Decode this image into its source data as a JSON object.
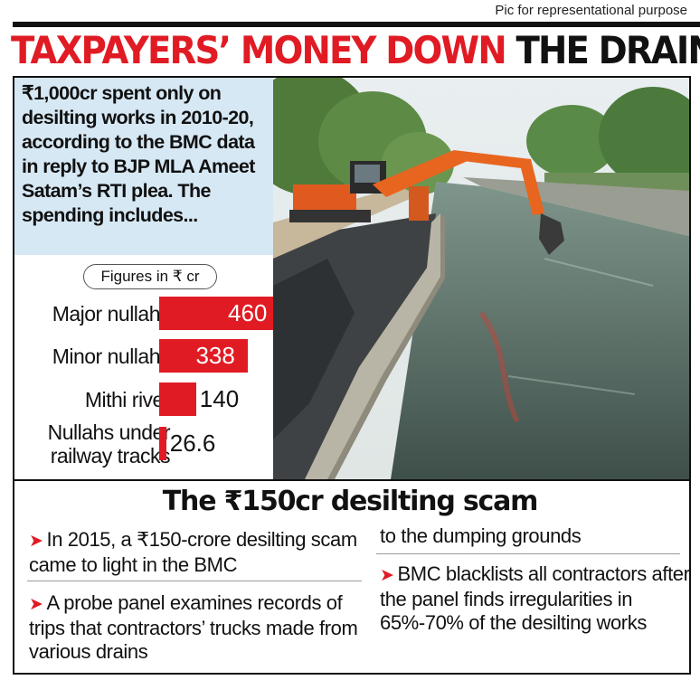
{
  "credit": "Pic for representational purpose",
  "headline": {
    "red_part": "TAXPAYERS’ MONEY DOWN",
    "black_part": "THE DRAIN?"
  },
  "intro_text": "₹1,000cr spent only on desilting works in 2010-20, according to the BMC data in reply to BJP MLA Ameet Satam’s RTI plea. The spending includes...",
  "figures_label": "Figures in ₹ cr",
  "photo_icon": "excavator-desilting-photo",
  "colors": {
    "accent": "#e01b24",
    "intro_bg": "#d6e8f4"
  },
  "chart_data": {
    "type": "bar",
    "orientation": "horizontal",
    "unit": "₹ cr",
    "categories": [
      "Major nullahs",
      "Minor nullahs",
      "Mithi river",
      "Nullahs under railway tracks"
    ],
    "category_lines": [
      [
        "Major nullahs"
      ],
      [
        "Minor nullahs"
      ],
      [
        "Mithi river"
      ],
      [
        "Nullahs under",
        "railway tracks"
      ]
    ],
    "values": [
      460,
      338,
      140,
      26.6
    ],
    "value_labels": [
      "460",
      "338",
      "140",
      "26.6"
    ],
    "xlim": [
      0,
      460
    ]
  },
  "scam": {
    "title": "The ₹150cr desilting scam",
    "bullets": [
      "In 2015, a ₹150-crore desilting scam came to light in the BMC",
      "A probe panel examines records of trips that contractors’ trucks made from various drains",
      "to the dumping grounds",
      "BMC blacklists all contractors after the panel finds irregularities in 65%-70% of the desilting works"
    ]
  }
}
